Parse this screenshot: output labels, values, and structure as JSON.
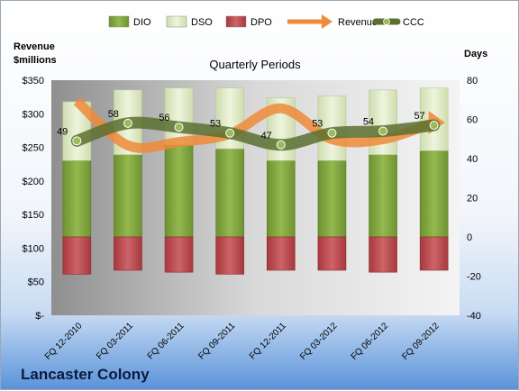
{
  "company": "Lancaster Colony",
  "chart_data": {
    "type": "bar",
    "subtitle": "Quarterly Periods",
    "y_left_label": "Revenue\n$millions",
    "y_right_label": "Days",
    "y_left_lim": [
      0,
      350
    ],
    "y_left_ticks": [
      "$-",
      "$50",
      "$100",
      "$150",
      "$200",
      "$250",
      "$300",
      "$350"
    ],
    "y_right_lim": [
      -40,
      80
    ],
    "y_right_ticks": [
      "-40",
      "-20",
      "0",
      "20",
      "40",
      "60",
      "80"
    ],
    "categories": [
      "FQ 12-2010",
      "FQ 03-2011",
      "FQ 06-2011",
      "FQ 09-2011",
      "FQ 12-2011",
      "FQ 03-2012",
      "FQ 06-2012",
      "FQ 09-2012"
    ],
    "legend": [
      "DIO",
      "DSO",
      "DPO",
      "Revenue",
      "CCC"
    ],
    "legend_position": "top",
    "series": [
      {
        "name": "DIO",
        "axis": "right",
        "values": [
          39,
          42,
          47,
          45,
          39,
          39,
          42,
          44
        ],
        "color": "#7ea33c"
      },
      {
        "name": "DSO",
        "axis": "right",
        "values": [
          30,
          33,
          29,
          31,
          32,
          33,
          33,
          32
        ],
        "color": "#d7e4bd"
      },
      {
        "name": "DPO",
        "axis": "right",
        "values": [
          -19,
          -17,
          -18,
          -19,
          -17,
          -17,
          -18,
          -17
        ],
        "color": "#b94c50"
      },
      {
        "name": "Revenue",
        "axis": "left",
        "values": [
          319,
          253,
          258,
          270,
          308,
          262,
          262,
          287
        ],
        "color": "#ee8a3a"
      },
      {
        "name": "CCC",
        "axis": "right",
        "values": [
          49,
          58,
          56,
          53,
          47,
          53,
          54,
          57
        ],
        "color": "#5a7030"
      }
    ]
  }
}
